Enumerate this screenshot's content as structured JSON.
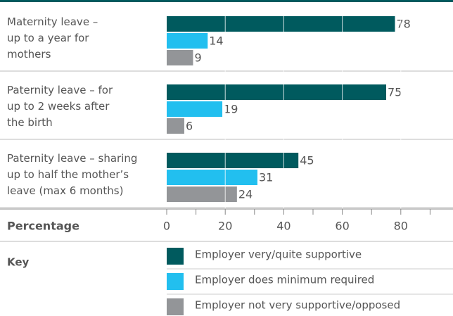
{
  "chart_data": {
    "type": "bar",
    "orientation": "horizontal",
    "categories": [
      "Maternity leave –\nup to a year for\nmothers",
      "Paternity leave  – for\nup to 2 weeks after\nthe birth",
      "Paternity leave – sharing\nup to half the mother’s\nleave (max 6 months)"
    ],
    "series": [
      {
        "name": "Employer very/quite supportive",
        "color": "#005a5e",
        "values": [
          78,
          75,
          45
        ]
      },
      {
        "name": "Employer does minimum required",
        "color": "#22bfef",
        "values": [
          14,
          19,
          31
        ]
      },
      {
        "name": "Employer not very supportive/opposed",
        "color": "#939598",
        "values": [
          9,
          6,
          24
        ]
      }
    ],
    "xlabel": "Percentage",
    "legend_title": "Key",
    "xlim": [
      0,
      100
    ],
    "xticks": [
      0,
      20,
      40,
      60,
      80
    ],
    "minor_xticks": [
      10,
      30,
      50,
      70,
      90
    ],
    "grid": true
  }
}
